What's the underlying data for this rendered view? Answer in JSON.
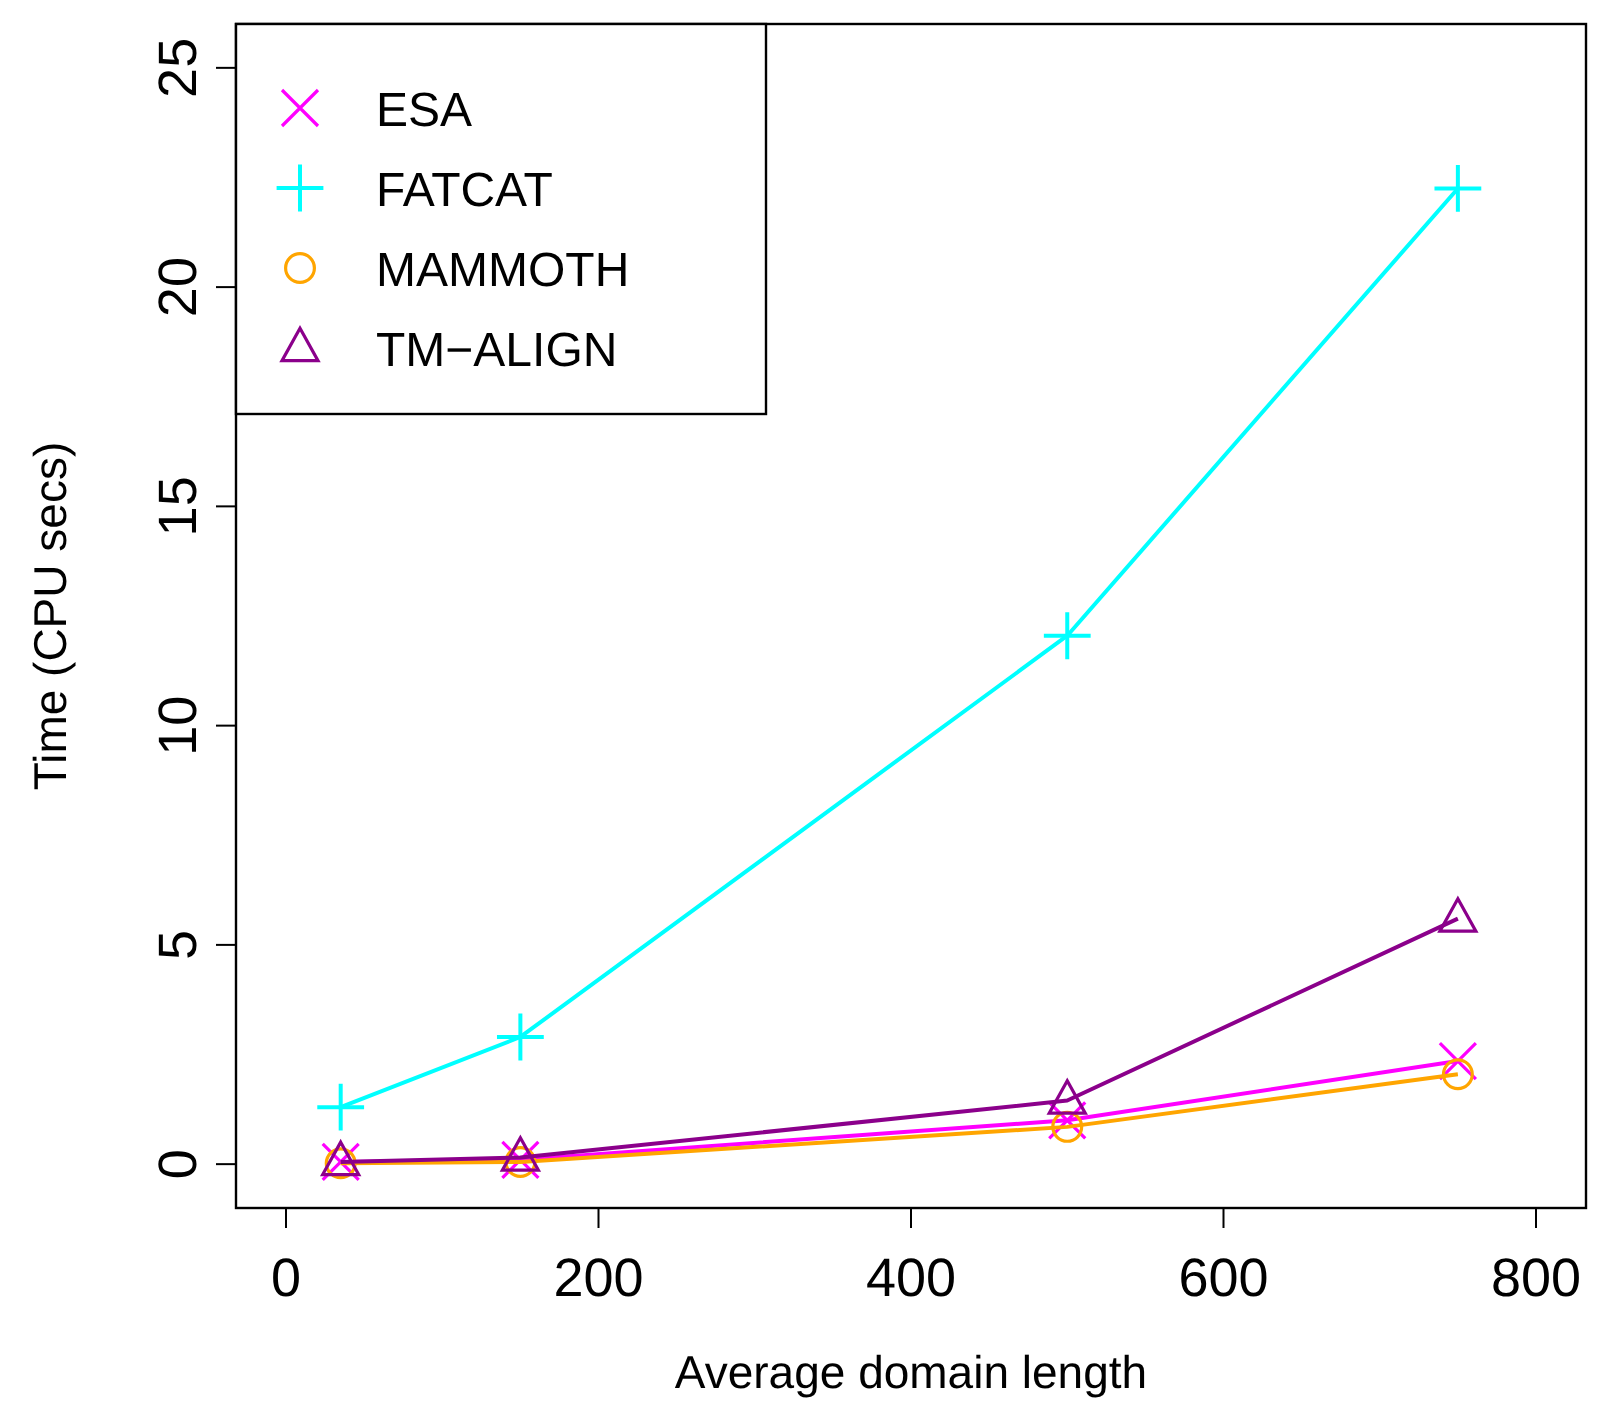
{
  "chart_data": {
    "type": "line",
    "xlabel": "Average domain length",
    "ylabel": "Time (CPU secs)",
    "x": [
      35,
      150,
      500,
      750
    ],
    "series": [
      {
        "name": "ESA",
        "color": "#ff00ff",
        "marker": "x",
        "values": [
          0.05,
          0.1,
          1.0,
          2.35
        ]
      },
      {
        "name": "FATCAT",
        "color": "#00ffff",
        "marker": "cross",
        "values": [
          1.3,
          2.9,
          12.05,
          22.25
        ]
      },
      {
        "name": "MAMMOTH",
        "color": "#ffa500",
        "marker": "circle",
        "values": [
          0.02,
          0.05,
          0.85,
          2.05
        ]
      },
      {
        "name": "TM−ALIGN",
        "color": "#8b008b",
        "marker": "triangle",
        "values": [
          0.05,
          0.15,
          1.45,
          5.6
        ]
      }
    ],
    "xlim": [
      -32,
      832
    ],
    "ylim": [
      -1,
      26
    ],
    "xticks": [
      0,
      200,
      400,
      600,
      800
    ],
    "yticks": [
      0,
      5,
      10,
      15,
      20,
      25
    ],
    "grid": false,
    "legend": "top left",
    "line_style": "solid"
  }
}
